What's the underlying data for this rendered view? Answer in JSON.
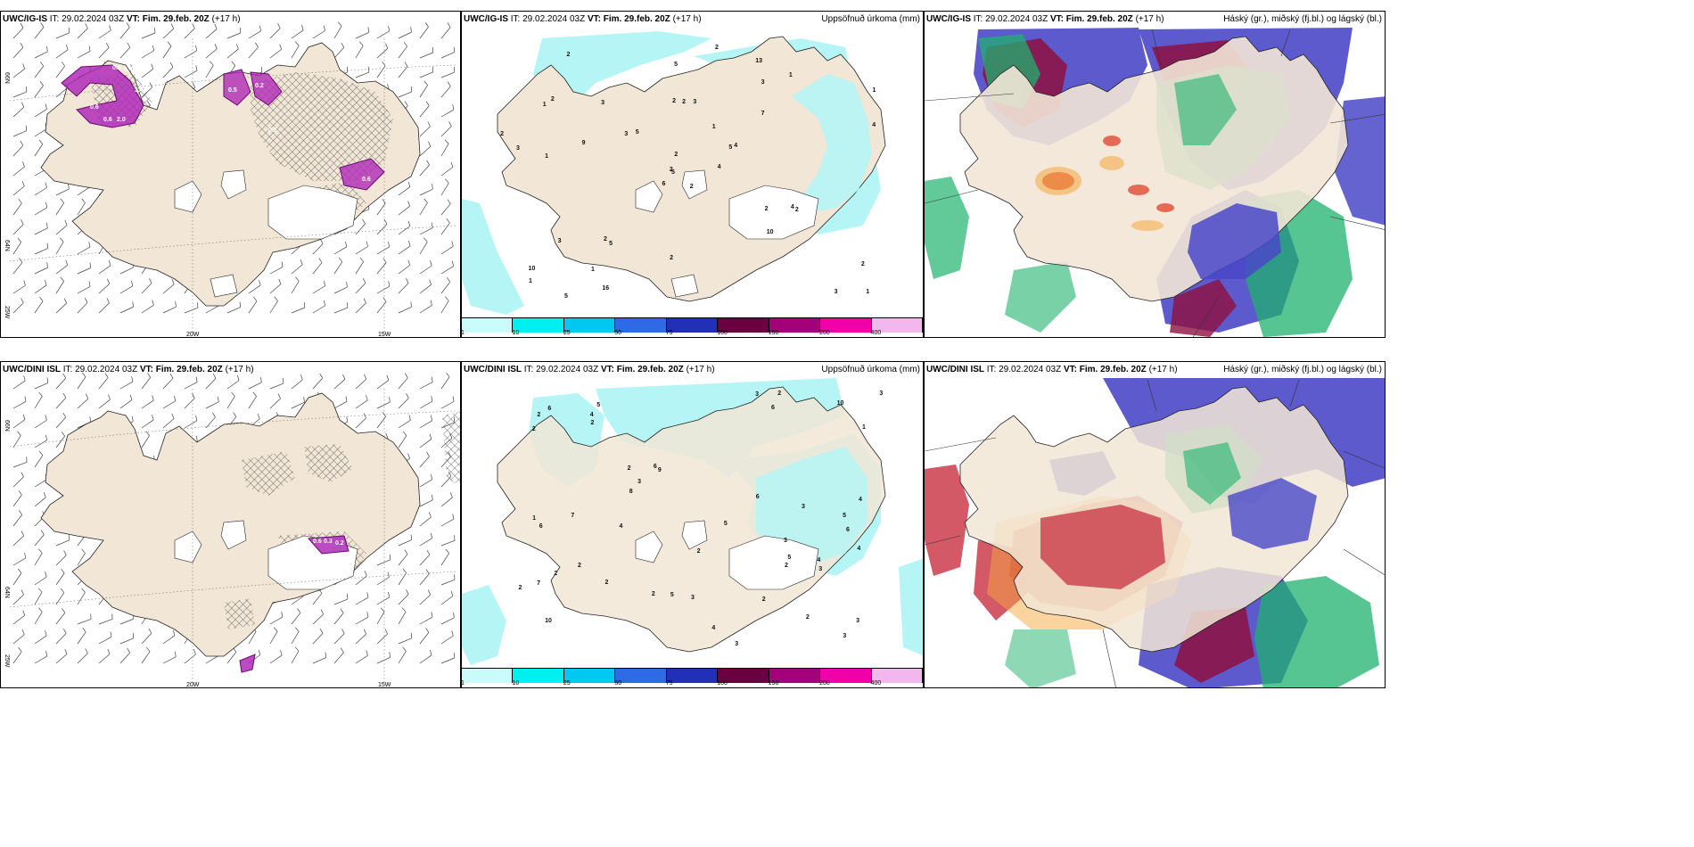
{
  "rows": [
    {
      "model": "UWC/IG-IS",
      "it_label": "IT:",
      "it_value": "29.02.2024 03Z",
      "vt_label": "VT:",
      "vt_value": "Fim. 29.feb. 20Z",
      "lead": "(+17 h)",
      "lat_labels": [
        "66N",
        "64N",
        "25W"
      ],
      "lon_labels": [
        "20W",
        "15W"
      ],
      "precip_labels": [
        "2",
        "1",
        "5",
        "10",
        "5",
        "5",
        "13",
        "3",
        "3",
        "4",
        "2",
        "1",
        "1",
        "1",
        "6",
        "7",
        "5",
        "2",
        "1",
        "3",
        "5",
        "1",
        "1",
        "2",
        "4",
        "2",
        "2",
        "5",
        "3",
        "2",
        "4",
        "2",
        "2",
        "2",
        "3",
        "1",
        "2",
        "3",
        "2",
        "4",
        "2",
        "3",
        "9",
        "10",
        "16",
        "2"
      ],
      "snow_labels": [
        "0.6",
        "0.4",
        "3.4",
        "0.6",
        "0.6",
        "2.0",
        "0.5",
        "0.2",
        "0.5",
        "0.6"
      ]
    },
    {
      "model": "UWC/DINI ISL",
      "it_label": "IT:",
      "it_value": "29.02.2024 03Z",
      "vt_label": "VT:",
      "vt_value": "Fim. 29.feb. 20Z",
      "lead": "(+17 h)",
      "lat_labels": [
        "66N",
        "64N",
        "25W"
      ],
      "lon_labels": [
        "20W",
        "15W"
      ],
      "precip_labels": [
        "3",
        "6",
        "10",
        "5",
        "9",
        "2",
        "7",
        "6",
        "2",
        "3",
        "2",
        "1",
        "2",
        "3",
        "2",
        "4",
        "2",
        "5",
        "6",
        "2",
        "3",
        "10",
        "8",
        "4",
        "3",
        "4",
        "5",
        "6",
        "2",
        "3",
        "4",
        "2",
        "3",
        "4",
        "5",
        "3",
        "2",
        "7",
        "3",
        "2",
        "1",
        "2",
        "3",
        "5",
        "4",
        "2",
        "2",
        "6",
        "6"
      ],
      "snow_labels": [
        "0.6",
        "0.3",
        "0.2"
      ]
    }
  ],
  "precip_title": "Uppsöfnuð úrkoma (mm)",
  "cloud_title": "Háský (gr.), miðský (fj.bl.) og lágský (bl.)",
  "colorbar": {
    "labels": [
      "1",
      "10",
      "25",
      "50",
      "75",
      "100",
      "150",
      "200",
      "400"
    ],
    "colors": [
      "#c8fbf9",
      "#00f0f0",
      "#00c8f0",
      "#2e69e6",
      "#2230b8",
      "#6b0040",
      "#a3007a",
      "#f000a8",
      "#f2b8ee"
    ]
  },
  "colors": {
    "land": "#f2e6d6",
    "sea": "#ffffff",
    "precip": "#b5f5f5",
    "snow": "#b02ab8"
  }
}
